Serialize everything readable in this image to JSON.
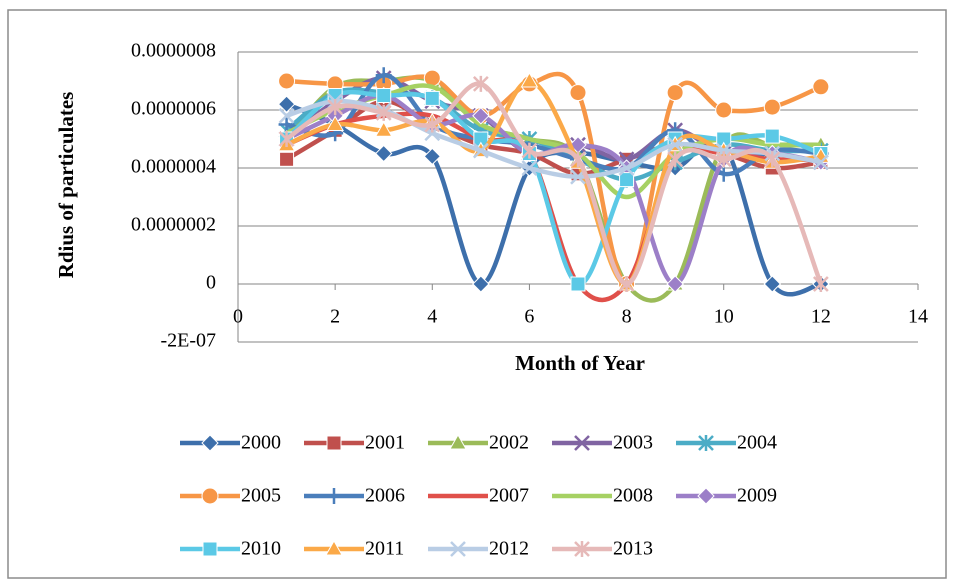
{
  "chart_data": {
    "type": "line",
    "smooth": true,
    "grid": true,
    "legend": "bottom",
    "x_label": "Month of Year",
    "y_label": "Rdius of particulates",
    "xlim": [
      0,
      14
    ],
    "xticks": [
      0,
      2,
      4,
      6,
      8,
      10,
      12,
      14
    ],
    "ylim": [
      -2e-07,
      8e-07
    ],
    "yticks": [
      {
        "value": -2e-07,
        "label": "-2E-07"
      },
      0,
      {
        "value": 2e-07,
        "label": "0.0000002"
      },
      {
        "value": 4e-07,
        "label": "0.0000004"
      },
      {
        "value": 6e-07,
        "label": "0.0000006"
      },
      {
        "value": 8e-07,
        "label": "0.0000008"
      }
    ],
    "x": [
      1,
      2,
      3,
      4,
      5,
      6,
      7,
      8,
      9,
      10,
      11,
      12
    ],
    "series": [
      {
        "name": "2000",
        "color": "#3d6fab",
        "marker": "diamond",
        "values": [
          6.2e-07,
          5.5e-07,
          4.5e-07,
          4.4e-07,
          0,
          4e-07,
          4.5e-07,
          4.2e-07,
          4e-07,
          4.8e-07,
          0,
          0
        ]
      },
      {
        "name": "2001",
        "color": "#c0504d",
        "marker": "square",
        "values": [
          4.3e-07,
          5.3e-07,
          6.3e-07,
          5.5e-07,
          4.8e-07,
          4.5e-07,
          3.8e-07,
          4.3e-07,
          4.8e-07,
          4.5e-07,
          4e-07,
          4.2e-07
        ]
      },
      {
        "name": "2002",
        "color": "#9bbb59",
        "marker": "triangle",
        "values": [
          5e-07,
          6.8e-07,
          7e-07,
          7e-07,
          5.5e-07,
          5e-07,
          4.3e-07,
          0,
          0,
          4.8e-07,
          4.8e-07,
          4.8e-07
        ]
      },
      {
        "name": "2003",
        "color": "#8064a2",
        "marker": "x",
        "values": [
          5e-07,
          6.3e-07,
          7.1e-07,
          6.3e-07,
          5.8e-07,
          4.5e-07,
          4.8e-07,
          4.3e-07,
          5.3e-07,
          4.5e-07,
          4.5e-07,
          4.2e-07
        ]
      },
      {
        "name": "2004",
        "color": "#4bacc6",
        "marker": "star",
        "values": [
          5.3e-07,
          6.6e-07,
          6.6e-07,
          6.4e-07,
          5.3e-07,
          5e-07,
          4.3e-07,
          3.6e-07,
          4.2e-07,
          4.8e-07,
          4.6e-07,
          4.6e-07
        ]
      },
      {
        "name": "2005",
        "color": "#f79646",
        "marker": "circle",
        "values": [
          7e-07,
          6.9e-07,
          6.9e-07,
          7.1e-07,
          5.8e-07,
          6.9e-07,
          6.6e-07,
          0,
          6.6e-07,
          6e-07,
          6.1e-07,
          6.8e-07
        ]
      },
      {
        "name": "2006",
        "color": "#4a7ebb",
        "marker": "plus",
        "values": [
          5.5e-07,
          5.2e-07,
          7.2e-07,
          5.5e-07,
          5e-07,
          4.8e-07,
          4.3e-07,
          4e-07,
          5.3e-07,
          3.8e-07,
          4.6e-07,
          4.5e-07
        ]
      },
      {
        "name": "2007",
        "color": "#e0504a",
        "marker": "none",
        "values": [
          4.8e-07,
          5.5e-07,
          5.8e-07,
          5.8e-07,
          5e-07,
          4.5e-07,
          0,
          0,
          4.3e-07,
          4.5e-07,
          4.3e-07,
          4.3e-07
        ]
      },
      {
        "name": "2008",
        "color": "#a6d163",
        "marker": "none",
        "values": [
          5.2e-07,
          6e-07,
          6.5e-07,
          6.8e-07,
          5.5e-07,
          5e-07,
          4.5e-07,
          3e-07,
          4.5e-07,
          5e-07,
          4.8e-07,
          4.8e-07
        ]
      },
      {
        "name": "2009",
        "color": "#9c7fc8",
        "marker": "diamond",
        "values": [
          5e-07,
          5.8e-07,
          6.5e-07,
          5.5e-07,
          5.8e-07,
          4.5e-07,
          4.8e-07,
          4e-07,
          0,
          4.3e-07,
          4.5e-07,
          4.2e-07
        ]
      },
      {
        "name": "2010",
        "color": "#5bc9e6",
        "marker": "square",
        "values": [
          5e-07,
          6.5e-07,
          6.5e-07,
          6.4e-07,
          5e-07,
          4.5e-07,
          0,
          3.6e-07,
          5e-07,
          5e-07,
          5.1e-07,
          4.5e-07
        ]
      },
      {
        "name": "2011",
        "color": "#fba948",
        "marker": "triangle",
        "values": [
          4.8e-07,
          5.5e-07,
          5.3e-07,
          5.6e-07,
          4.6e-07,
          7e-07,
          4.2e-07,
          0,
          4.8e-07,
          4.6e-07,
          4.2e-07,
          4.4e-07
        ]
      },
      {
        "name": "2012",
        "color": "#b9cde5",
        "marker": "x",
        "values": [
          5.8e-07,
          6.3e-07,
          6e-07,
          5.2e-07,
          4.6e-07,
          4e-07,
          3.7e-07,
          4e-07,
          4.8e-07,
          4.6e-07,
          4.5e-07,
          4.2e-07
        ]
      },
      {
        "name": "2013",
        "color": "#e6b9b8",
        "marker": "star",
        "values": [
          5e-07,
          6.1e-07,
          5.9e-07,
          5.5e-07,
          6.9e-07,
          4.6e-07,
          4.3e-07,
          0,
          4.3e-07,
          4.3e-07,
          4.3e-07,
          0
        ]
      }
    ]
  }
}
